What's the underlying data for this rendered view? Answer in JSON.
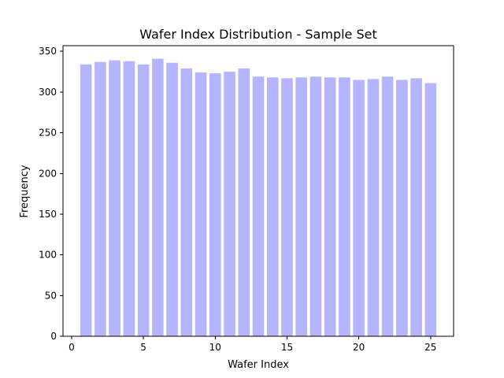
{
  "chart_data": {
    "type": "bar",
    "title": "Wafer Index Distribution - Sample Set",
    "xlabel": "Wafer Index",
    "ylabel": "Frequency",
    "x": [
      1,
      2,
      3,
      4,
      5,
      6,
      7,
      8,
      9,
      10,
      11,
      12,
      13,
      14,
      15,
      16,
      17,
      18,
      19,
      20,
      21,
      22,
      23,
      24,
      25
    ],
    "values": [
      334,
      337,
      339,
      338,
      334,
      341,
      336,
      329,
      324,
      323,
      325,
      329,
      319,
      318,
      317,
      318,
      319,
      318,
      318,
      315,
      316,
      319,
      315,
      317,
      311
    ],
    "xlim": [
      -0.6,
      26.6
    ],
    "ylim": [
      0,
      357
    ],
    "xticks": [
      0,
      5,
      10,
      15,
      20,
      25
    ],
    "yticks": [
      0,
      50,
      100,
      150,
      200,
      250,
      300,
      350
    ],
    "bar_color": "#b4b4ff",
    "grid": false,
    "legend": "none"
  }
}
